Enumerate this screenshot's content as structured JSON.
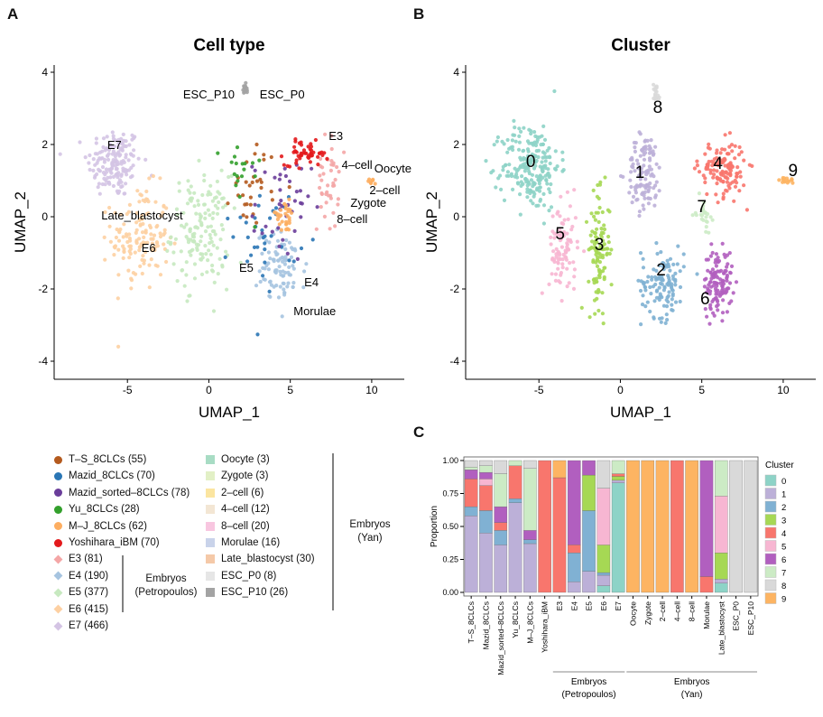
{
  "panels": {
    "A": "A",
    "B": "B",
    "C": "C"
  },
  "umap_axes": {
    "xlabel": "UMAP_1",
    "ylabel": "UMAP_2",
    "xlim": [
      -9.5,
      12
    ],
    "ylim": [
      -4.5,
      4.2
    ],
    "xticks": [
      "-5",
      "0",
      "5",
      "10"
    ],
    "xtick_values": [
      -5,
      0,
      5,
      10
    ],
    "yticks": [
      "-4",
      "-2",
      "0",
      "2",
      "4"
    ],
    "ytick_values": [
      -4,
      -2,
      0,
      2,
      4
    ]
  },
  "celltype_plot": {
    "title": "Cell type",
    "labels": [
      {
        "text": "ESC_P10",
        "x": 0.0,
        "y": 3.4
      },
      {
        "text": "ESC_P0",
        "x": 4.5,
        "y": 3.4
      },
      {
        "text": "E3",
        "x": 7.8,
        "y": 2.25
      },
      {
        "text": "E7",
        "x": -5.8,
        "y": 2.0
      },
      {
        "text": "4–cell",
        "x": 9.1,
        "y": 1.45
      },
      {
        "text": "Oocyte",
        "x": 11.3,
        "y": 1.35
      },
      {
        "text": "2–cell",
        "x": 10.8,
        "y": 0.75
      },
      {
        "text": "Zygote",
        "x": 9.8,
        "y": 0.4
      },
      {
        "text": "8–cell",
        "x": 8.8,
        "y": -0.05
      },
      {
        "text": "Late_blastocyst",
        "x": -4.1,
        "y": 0.05
      },
      {
        "text": "E6",
        "x": -3.7,
        "y": -0.85
      },
      {
        "text": "E5",
        "x": 2.3,
        "y": -1.4
      },
      {
        "text": "E4",
        "x": 6.3,
        "y": -1.8
      },
      {
        "text": "Morulae",
        "x": 6.5,
        "y": -2.6
      }
    ]
  },
  "cluster_plot": {
    "title": "Cluster",
    "labels": [
      {
        "text": "0",
        "x": -5.5,
        "y": 1.5
      },
      {
        "text": "1",
        "x": 1.2,
        "y": 1.2
      },
      {
        "text": "2",
        "x": 2.5,
        "y": -1.5
      },
      {
        "text": "3",
        "x": -1.3,
        "y": -0.8
      },
      {
        "text": "4",
        "x": 6.0,
        "y": 1.45
      },
      {
        "text": "5",
        "x": -3.7,
        "y": -0.5
      },
      {
        "text": "6",
        "x": 5.2,
        "y": -2.3
      },
      {
        "text": "7",
        "x": 5.0,
        "y": 0.25
      },
      {
        "text": "8",
        "x": 2.3,
        "y": 3.0
      },
      {
        "text": "9",
        "x": 10.6,
        "y": 1.25
      }
    ]
  },
  "legend": {
    "col1": [
      {
        "label": "T–S_8CLCs (55)",
        "color": "#b45a1e",
        "shape": "circle"
      },
      {
        "label": "Mazid_8CLCs (70)",
        "color": "#2a76b5",
        "shape": "circle"
      },
      {
        "label": "Mazid_sorted–8CLCs (78)",
        "color": "#6a3d9a",
        "shape": "circle"
      },
      {
        "label": "Yu_8CLCs (28)",
        "color": "#33a02c",
        "shape": "circle"
      },
      {
        "label": "M–J_8CLCs (62)",
        "color": "#fdae61",
        "shape": "circle"
      },
      {
        "label": "Yoshihara_iBM (70)",
        "color": "#e31a1c",
        "shape": "circle"
      },
      {
        "label": "E3 (81)",
        "color": "#f4a6a6",
        "shape": "diamond"
      },
      {
        "label": "E4 (190)",
        "color": "#a6c4e0",
        "shape": "diamond"
      },
      {
        "label": "E5 (377)",
        "color": "#c7e9c0",
        "shape": "diamond"
      },
      {
        "label": "E6 (415)",
        "color": "#fdd0a2",
        "shape": "diamond"
      },
      {
        "label": "E7 (466)",
        "color": "#d4c4e4",
        "shape": "diamond"
      }
    ],
    "col2": [
      {
        "label": "Oocyte (3)",
        "color": "#a8dcc4"
      },
      {
        "label": "Zygote (3)",
        "color": "#e2f0c6"
      },
      {
        "label": "2–cell (6)",
        "color": "#fbe5a0"
      },
      {
        "label": "4–cell (12)",
        "color": "#f3e6d4"
      },
      {
        "label": "8–cell (20)",
        "color": "#f8c6e0"
      },
      {
        "label": "Morulae (16)",
        "color": "#c9d3ea"
      },
      {
        "label": "Late_blastocyst (30)",
        "color": "#f5c9a8"
      },
      {
        "label": "ESC_P0 (8)",
        "color": "#e6e6e6"
      },
      {
        "label": "ESC_P10 (26)",
        "color": "#a3a3a3"
      }
    ],
    "group_petropoulos": [
      "Embryos",
      "(Petropoulos)"
    ],
    "group_yan": [
      "Embryos",
      "(Yan)"
    ]
  },
  "chart_data": [
    {
      "type": "scatter",
      "title": "Cell type",
      "xlabel": "UMAP_1",
      "ylabel": "UMAP_2",
      "xlim": [
        -9.5,
        12
      ],
      "ylim": [
        -4.5,
        4.2
      ],
      "regions": [
        {
          "name": "E7",
          "color": "#d4c4e4",
          "cx": -5.8,
          "cy": 1.5,
          "sx": 1.5,
          "sy": 0.9,
          "n": 160
        },
        {
          "name": "E6",
          "color": "#fdd0a2",
          "cx": -4.2,
          "cy": -0.6,
          "sx": 1.6,
          "sy": 1.3,
          "n": 140
        },
        {
          "name": "E5",
          "color": "#c7e9c0",
          "cx": -0.5,
          "cy": -0.4,
          "sx": 1.6,
          "sy": 1.4,
          "n": 150
        },
        {
          "name": "E4",
          "color": "#a6c4e0",
          "cx": 4.5,
          "cy": -1.4,
          "sx": 1.4,
          "sy": 0.9,
          "n": 90
        },
        {
          "name": "E3",
          "color": "#f4a6a6",
          "cx": 7.3,
          "cy": 0.9,
          "sx": 0.6,
          "sy": 1.2,
          "n": 40
        },
        {
          "name": "T–S_8CLCs",
          "color": "#b45a1e",
          "cx": 2.8,
          "cy": 0.9,
          "sx": 1.3,
          "sy": 1.0,
          "n": 30
        },
        {
          "name": "Mazid_8CLCs",
          "color": "#2a76b5",
          "cx": 3.5,
          "cy": -0.5,
          "sx": 1.8,
          "sy": 1.3,
          "n": 35
        },
        {
          "name": "Mazid_sorted–8CLCs",
          "color": "#6a3d9a",
          "cx": 4.5,
          "cy": 0.2,
          "sx": 1.6,
          "sy": 1.3,
          "n": 40
        },
        {
          "name": "Yu_8CLCs",
          "color": "#33a02c",
          "cx": 2.0,
          "cy": 1.2,
          "sx": 1.1,
          "sy": 0.9,
          "n": 18
        },
        {
          "name": "M–J_8CLCs",
          "color": "#fdae61",
          "cx": 4.6,
          "cy": 0.0,
          "sx": 0.8,
          "sy": 0.4,
          "n": 30
        },
        {
          "name": "Yoshihara_iBM",
          "color": "#e31a1c",
          "cx": 6.0,
          "cy": 1.75,
          "sx": 1.2,
          "sy": 0.3,
          "n": 50
        },
        {
          "name": "ESC_P10",
          "color": "#a3a3a3",
          "cx": 2.2,
          "cy": 3.5,
          "sx": 0.12,
          "sy": 0.15,
          "n": 20
        },
        {
          "name": "Oocyte",
          "color": "#fdae61",
          "cx": 10.0,
          "cy": 1.0,
          "sx": 0.3,
          "sy": 0.1,
          "n": 8
        }
      ]
    },
    {
      "type": "scatter",
      "title": "Cluster",
      "xlabel": "UMAP_1",
      "ylabel": "UMAP_2",
      "xlim": [
        -9.5,
        12
      ],
      "ylim": [
        -4.5,
        4.2
      ],
      "regions": [
        {
          "name": "0",
          "color": "#8dd3c7",
          "cx": -5.5,
          "cy": 1.4,
          "sx": 1.6,
          "sy": 1.1,
          "n": 220
        },
        {
          "name": "1",
          "color": "#bcb0d8",
          "cx": 1.5,
          "cy": 1.2,
          "sx": 1.0,
          "sy": 1.0,
          "n": 110
        },
        {
          "name": "2",
          "color": "#80b1d3",
          "cx": 2.6,
          "cy": -1.8,
          "sx": 1.2,
          "sy": 0.9,
          "n": 120
        },
        {
          "name": "3",
          "color": "#a6d854",
          "cx": -1.3,
          "cy": -0.9,
          "sx": 0.6,
          "sy": 1.4,
          "n": 110
        },
        {
          "name": "4",
          "color": "#f8766d",
          "cx": 6.3,
          "cy": 1.3,
          "sx": 1.3,
          "sy": 0.7,
          "n": 130
        },
        {
          "name": "5",
          "color": "#f7b6d2",
          "cx": -3.5,
          "cy": -0.9,
          "sx": 0.8,
          "sy": 1.2,
          "n": 90
        },
        {
          "name": "6",
          "color": "#b15fbf",
          "cx": 6.0,
          "cy": -1.8,
          "sx": 0.8,
          "sy": 0.8,
          "n": 120
        },
        {
          "name": "7",
          "color": "#ccebc5",
          "cx": 5.1,
          "cy": 0.1,
          "sx": 0.4,
          "sy": 0.4,
          "n": 25
        },
        {
          "name": "8",
          "color": "#d9d9d9",
          "cx": 2.2,
          "cy": 3.4,
          "sx": 0.2,
          "sy": 0.3,
          "n": 20
        },
        {
          "name": "9",
          "color": "#fdb462",
          "cx": 10.2,
          "cy": 1.0,
          "sx": 0.4,
          "sy": 0.08,
          "n": 15
        }
      ]
    },
    {
      "type": "bar",
      "stacked": true,
      "ylabel": "Proportion",
      "ylim": [
        0,
        1
      ],
      "yticks": [
        "0.00",
        "0.25",
        "0.50",
        "0.75",
        "1.00"
      ],
      "ytick_values": [
        0,
        0.25,
        0.5,
        0.75,
        1.0
      ],
      "legend_title": "Cluster",
      "legend_position": "right",
      "categories": [
        "T–S_8CLCs",
        "Mazid_8CLCs",
        "Mazid_sorted–8CLCs",
        "Yu_8CLCs",
        "M–J_8CLCs",
        "Yoshihara_iBM",
        "E3",
        "E4",
        "E5",
        "E6",
        "E7",
        "Oocyte",
        "Zygote",
        "2–cell",
        "4–cell",
        "8–cell",
        "Morulae",
        "Late_blastocyst",
        "ESC_P0",
        "ESC_P10"
      ],
      "groups": [
        {
          "label": [
            "Embryos",
            "(Petropoulos)"
          ],
          "from": 6,
          "to": 10
        },
        {
          "label": [
            "Embryos",
            "(Yan)"
          ],
          "from": 11,
          "to": 19
        }
      ],
      "series": [
        {
          "name": "0",
          "color": "#8dd3c7",
          "values": [
            0,
            0,
            0,
            0,
            0,
            0,
            0,
            0,
            0,
            0.05,
            0.83,
            0,
            0,
            0,
            0,
            0,
            0,
            0.07,
            0,
            0
          ]
        },
        {
          "name": "1",
          "color": "#bcb0d8",
          "values": [
            0.58,
            0.45,
            0.36,
            0.68,
            0.37,
            0,
            0,
            0.08,
            0.16,
            0.08,
            0.02,
            0,
            0,
            0,
            0,
            0,
            0,
            0.03,
            0,
            0
          ]
        },
        {
          "name": "2",
          "color": "#80b1d3",
          "values": [
            0.07,
            0.17,
            0.11,
            0.03,
            0.03,
            0,
            0,
            0.22,
            0.46,
            0.02,
            0,
            0,
            0,
            0,
            0,
            0,
            0,
            0,
            0,
            0
          ]
        },
        {
          "name": "3",
          "color": "#a6d854",
          "values": [
            0,
            0,
            0,
            0,
            0,
            0,
            0,
            0,
            0.27,
            0.21,
            0.03,
            0,
            0,
            0,
            0,
            0,
            0,
            0.2,
            0,
            0
          ]
        },
        {
          "name": "4",
          "color": "#f8766d",
          "values": [
            0.21,
            0.19,
            0.06,
            0.25,
            0,
            1.0,
            0.87,
            0.06,
            0,
            0,
            0.02,
            0,
            0,
            0,
            1.0,
            0,
            0.12,
            0,
            0,
            0
          ]
        },
        {
          "name": "5",
          "color": "#f7b6d2",
          "values": [
            0,
            0.05,
            0,
            0,
            0,
            0,
            0,
            0,
            0,
            0.43,
            0,
            0,
            0,
            0,
            0,
            0,
            0,
            0.43,
            0,
            0
          ]
        },
        {
          "name": "6",
          "color": "#b15fbf",
          "values": [
            0.07,
            0.05,
            0.12,
            0,
            0.07,
            0,
            0,
            0.64,
            0.11,
            0,
            0,
            0,
            0,
            0,
            0,
            0,
            0.88,
            0,
            0,
            0
          ]
        },
        {
          "name": "7",
          "color": "#ccebc5",
          "values": [
            0.02,
            0.05,
            0.25,
            0.04,
            0.47,
            0,
            0,
            0,
            0,
            0,
            0.1,
            0,
            0,
            0,
            0,
            0,
            0,
            0.27,
            0,
            0
          ]
        },
        {
          "name": "8",
          "color": "#d9d9d9",
          "values": [
            0.05,
            0.04,
            0.1,
            0,
            0.06,
            0,
            0,
            0,
            0,
            0.21,
            0,
            0,
            0,
            0,
            0,
            0,
            0,
            0,
            1.0,
            1.0
          ]
        },
        {
          "name": "9",
          "color": "#fdb462",
          "values": [
            0,
            0,
            0,
            0,
            0,
            0,
            0.13,
            0,
            0,
            0,
            0,
            1.0,
            1.0,
            1.0,
            0,
            1.0,
            0,
            0,
            0,
            0
          ]
        }
      ]
    }
  ]
}
